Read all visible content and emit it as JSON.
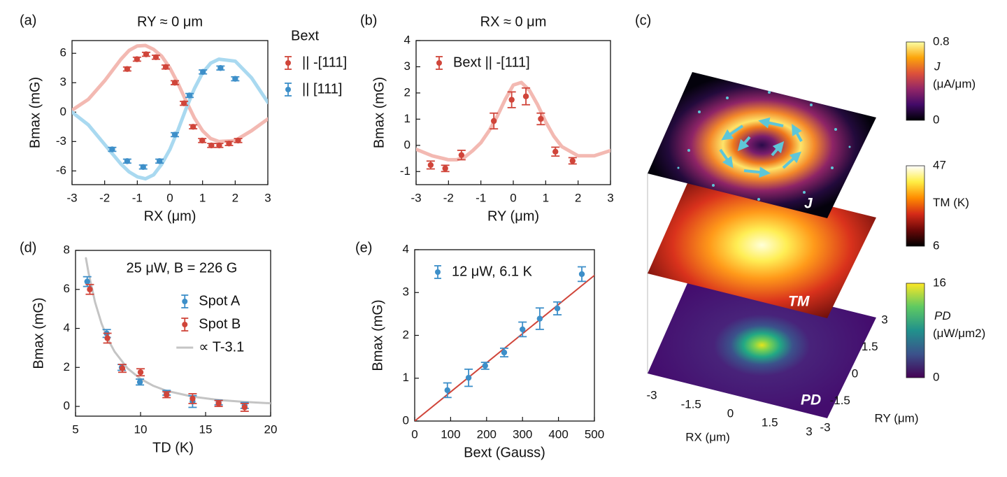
{
  "chart_data": [
    {
      "type": "scatter",
      "panel_label": "(a)",
      "title": "RY ≈ 0 μm",
      "xlabel": "RX (μm)",
      "ylabel": "Bmax (mG)",
      "xlim": [
        -3,
        3
      ],
      "ylim": [
        -7.4,
        7.3
      ],
      "xticks": [
        -3,
        -2,
        -1,
        0,
        1,
        2,
        3
      ],
      "yticks": [
        -6,
        -3,
        0,
        3,
        6
      ],
      "legend": "outside right",
      "legend_title": "Bext",
      "series": [
        {
          "style": "line",
          "color": "#f3b9b2",
          "line_width": 5,
          "x": [
            -3,
            -2.5,
            -2,
            -1.5,
            -1.25,
            -1,
            -0.75,
            -0.5,
            -0.25,
            0,
            0.25,
            0.5,
            0.75,
            1,
            1.25,
            1.5,
            2,
            2.5,
            3
          ],
          "values": [
            0.2,
            1.3,
            3.2,
            5.4,
            6.3,
            6.75,
            6.8,
            6.4,
            5.7,
            4.5,
            2.9,
            1.1,
            -0.6,
            -1.9,
            -2.7,
            -3.0,
            -2.9,
            -1.9,
            -0.7
          ]
        },
        {
          "style": "line",
          "color": "#a9d9f0",
          "line_width": 5,
          "x": [
            -3,
            -2.5,
            -2,
            -1.5,
            -1.25,
            -1,
            -0.75,
            -0.5,
            -0.25,
            0,
            0.25,
            0.5,
            0.75,
            1,
            1.25,
            1.5,
            2,
            2.5,
            3
          ],
          "values": [
            0,
            -1.3,
            -3.3,
            -5.3,
            -6.1,
            -6.6,
            -6.8,
            -6.4,
            -5.3,
            -3.8,
            -1.8,
            0.4,
            2.4,
            4.0,
            5.0,
            5.4,
            5.2,
            3.5,
            1.0
          ]
        },
        {
          "name": "|| -[111]",
          "color": "#d0453a",
          "x": [
            -1.31,
            -1.01,
            -0.73,
            -0.43,
            -0.13,
            0.15,
            0.43,
            0.71,
            0.99,
            1.27,
            1.51,
            1.81,
            2.09
          ],
          "values": [
            4.4,
            5.4,
            5.9,
            5.6,
            4.6,
            3.0,
            0.9,
            -1.5,
            -2.9,
            -3.4,
            -3.4,
            -3.2,
            -2.9
          ],
          "errors": [
            0.2,
            0.2,
            0.2,
            0.2,
            0.2,
            0.2,
            0.2,
            0.2,
            0.2,
            0.2,
            0.2,
            0.2,
            0.2
          ]
        },
        {
          "name": "|| [111]",
          "color": "#3d8fc9",
          "x": [
            -1.77,
            -1.31,
            -0.82,
            -0.32,
            0.15,
            0.6,
            1.01,
            1.55,
            2.0
          ],
          "values": [
            -3.8,
            -5.0,
            -5.6,
            -5.0,
            -2.3,
            1.7,
            4.1,
            4.5,
            3.4
          ],
          "errors": [
            0.2,
            0.2,
            0.2,
            0.2,
            0.2,
            0.2,
            0.2,
            0.2,
            0.2
          ]
        }
      ]
    },
    {
      "type": "scatter",
      "panel_label": "(b)",
      "title": "RX ≈ 0 μm",
      "xlabel": "RY (μm)",
      "ylabel": "Bmax (mG)",
      "xlim": [
        -3,
        3
      ],
      "ylim": [
        -1.5,
        4
      ],
      "xticks": [
        -3,
        -2,
        -1,
        0,
        1,
        2,
        3
      ],
      "yticks": [
        -1,
        0,
        1,
        2,
        3,
        4
      ],
      "legend": "upper left",
      "series": [
        {
          "style": "line",
          "color": "#f3b9b2",
          "line_width": 5,
          "x": [
            -3,
            -2.5,
            -2,
            -1.75,
            -1.5,
            -1.25,
            -1,
            -0.75,
            -0.5,
            -0.25,
            0,
            0.25,
            0.5,
            0.75,
            1,
            1.25,
            1.5,
            2,
            2.5,
            3
          ],
          "values": [
            -0.15,
            -0.4,
            -0.55,
            -0.55,
            -0.45,
            -0.2,
            0.1,
            0.55,
            1.1,
            1.75,
            2.3,
            2.4,
            2.1,
            1.55,
            0.9,
            0.35,
            -0.05,
            -0.4,
            -0.4,
            -0.2
          ]
        },
        {
          "name": "Bext || -[111]",
          "color": "#d0453a",
          "x": [
            -2.55,
            -2.1,
            -1.6,
            -0.6,
            -0.05,
            0.39,
            0.85,
            1.3,
            1.83
          ],
          "values": [
            -0.75,
            -0.88,
            -0.37,
            0.93,
            1.74,
            1.87,
            1.01,
            -0.24,
            -0.59
          ],
          "errors": [
            0.15,
            0.12,
            0.18,
            0.3,
            0.3,
            0.32,
            0.22,
            0.17,
            0.12
          ]
        }
      ]
    },
    {
      "type": "layers",
      "panel_label": "(c)",
      "layers": [
        {
          "label": "J",
          "colorbar": {
            "label": "J",
            "unit": "(μA/μm)",
            "lim": [
              0,
              0.8
            ],
            "ticks": [
              0,
              0.8
            ],
            "colors": [
              "#000004",
              "#420a68",
              "#932667",
              "#dd513a",
              "#fca50a",
              "#fcffa4"
            ]
          }
        },
        {
          "label": "TM",
          "colorbar": {
            "label": "TM (K)",
            "lim": [
              6,
              47
            ],
            "ticks": [
              6,
              47
            ],
            "colors": [
              "#000000",
              "#6b0808",
              "#d42a18",
              "#ff8c00",
              "#ffee44",
              "#ffffff"
            ]
          }
        },
        {
          "label": "PD",
          "colorbar": {
            "label": "PD",
            "unit": "(μW/μm2)",
            "lim": [
              0,
              16
            ],
            "ticks": [
              0,
              16
            ],
            "colors": [
              "#440154",
              "#3b528b",
              "#21918c",
              "#5ec962",
              "#fde725"
            ]
          }
        }
      ],
      "xlabel": "RX (μm)",
      "ylabel": "RY (μm)",
      "xlim": [
        -3,
        3
      ],
      "xticks": [
        -3,
        -1.5,
        0,
        1.5,
        3
      ],
      "ylim": [
        -3,
        3
      ],
      "yticks": [
        3,
        1.5,
        0,
        -1.5,
        -3
      ]
    },
    {
      "type": "scatter",
      "panel_label": "(d)",
      "annotation": "25 μW, B = 226 G",
      "xlabel": "TD (K)",
      "ylabel": "Bmax (mG)",
      "xlim": [
        5,
        20
      ],
      "ylim": [
        -0.5,
        8
      ],
      "xticks": [
        5,
        10,
        15,
        20
      ],
      "yticks": [
        0,
        2,
        4,
        6,
        8
      ],
      "legend": "right",
      "series": [
        {
          "name": "Spot A",
          "color": "#3d8fc9",
          "x": [
            5.9,
            7.4,
            8.55,
            9.95,
            12,
            14,
            16,
            18
          ],
          "values": [
            6.4,
            3.74,
            2.0,
            1.25,
            0.7,
            0.25,
            0.2,
            0.05
          ],
          "errors": [
            0.25,
            0.2,
            0.15,
            0.15,
            0.12,
            0.3,
            0.12,
            0.15
          ]
        },
        {
          "name": "Spot B",
          "color": "#d0453a",
          "x": [
            6.1,
            7.45,
            8.6,
            10,
            12,
            14,
            16,
            18
          ],
          "values": [
            6.0,
            3.5,
            1.95,
            1.75,
            0.6,
            0.4,
            0.15,
            -0.05
          ],
          "errors": [
            0.25,
            0.25,
            0.2,
            0.18,
            0.15,
            0.25,
            0.15,
            0.2
          ]
        },
        {
          "name": "∝ T-3.1",
          "style": "line",
          "color": "#c4c4c4",
          "line_width": 3,
          "x": [
            5.8,
            6,
            6.5,
            7,
            7.5,
            8,
            9,
            10,
            11,
            12,
            14,
            16,
            18,
            20
          ],
          "values": [
            7.6,
            6.85,
            5.35,
            4.25,
            3.43,
            2.81,
            1.95,
            1.41,
            1.05,
            0.8,
            0.5,
            0.33,
            0.23,
            0.16
          ]
        }
      ]
    },
    {
      "type": "scatter",
      "panel_label": "(e)",
      "xlabel": "Bext (Gauss)",
      "ylabel": "Bmax (mG)",
      "xlim": [
        0,
        500
      ],
      "ylim": [
        0,
        4
      ],
      "xticks": [
        0,
        100,
        200,
        300,
        400,
        500
      ],
      "yticks": [
        0,
        1,
        2,
        3,
        4
      ],
      "legend": "upper left",
      "series": [
        {
          "name": "12 μW, 6.1 K",
          "color": "#3d8fc9",
          "x": [
            91,
            150,
            196,
            249,
            300,
            348,
            397,
            465
          ],
          "values": [
            0.72,
            1.01,
            1.29,
            1.6,
            2.14,
            2.39,
            2.63,
            3.43
          ],
          "errors": [
            0.17,
            0.2,
            0.08,
            0.1,
            0.17,
            0.25,
            0.15,
            0.17
          ]
        },
        {
          "style": "line",
          "color": "#d0453a",
          "line_width": 2,
          "x": [
            0,
            500
          ],
          "values": [
            0,
            3.4
          ]
        }
      ]
    }
  ]
}
